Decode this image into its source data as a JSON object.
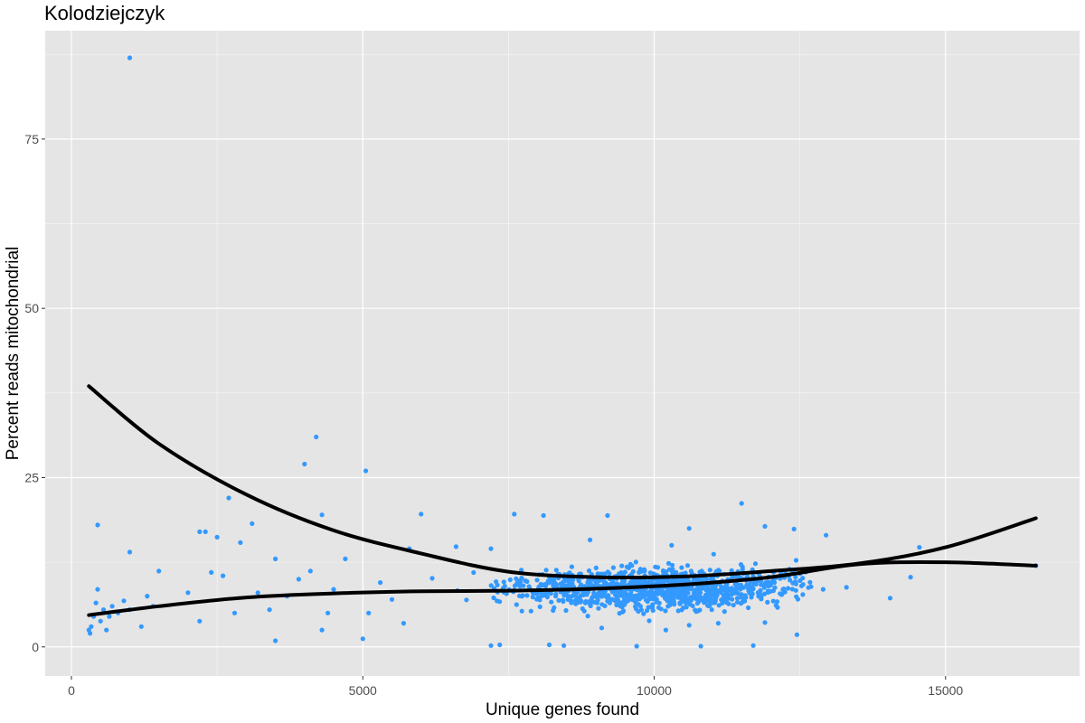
{
  "chart_data": {
    "type": "scatter",
    "title": "Kolodziejczyk",
    "xlabel": "Unique genes found",
    "ylabel": "Percent reads mitochondrial",
    "xlim": [
      -450,
      17300
    ],
    "ylim": [
      -4.3,
      91
    ],
    "xticks": [
      0,
      5000,
      10000,
      15000
    ],
    "xtick_labels": [
      "0",
      "5000",
      "10000",
      "15000"
    ],
    "yticks": [
      0,
      25,
      50,
      75
    ],
    "ytick_labels": [
      "0",
      "25",
      "50",
      "75"
    ],
    "grid": true,
    "legend": "none",
    "colors": {
      "panel": "#e5e5e5",
      "grid": "#ffffff",
      "points": "#3399ff",
      "fit": "#000000",
      "tick_label": "#4d4d4d"
    },
    "points": [
      [
        1000,
        87
      ],
      [
        4200,
        31
      ],
      [
        4000,
        27
      ],
      [
        5050,
        26
      ],
      [
        11500,
        21.2
      ],
      [
        2700,
        22
      ],
      [
        4300,
        19.5
      ],
      [
        6000,
        19.6
      ],
      [
        7600,
        19.6
      ],
      [
        8100,
        19.4
      ],
      [
        9200,
        19.4
      ],
      [
        10600,
        17.5
      ],
      [
        11900,
        17.8
      ],
      [
        12400,
        17.4
      ],
      [
        450,
        18
      ],
      [
        3100,
        18.2
      ],
      [
        2200,
        17
      ],
      [
        2300,
        17
      ],
      [
        2500,
        16.2
      ],
      [
        2900,
        15.4
      ],
      [
        12950,
        16.5
      ],
      [
        14550,
        14.7
      ],
      [
        14400,
        10.3
      ],
      [
        14050,
        7.2
      ],
      [
        16550,
        12
      ],
      [
        1000,
        14
      ],
      [
        1500,
        11.2
      ],
      [
        3500,
        13
      ],
      [
        4100,
        11.2
      ],
      [
        4700,
        13
      ],
      [
        5800,
        14.5
      ],
      [
        6600,
        14.8
      ],
      [
        7200,
        14.5
      ],
      [
        8900,
        15.8
      ],
      [
        10300,
        15
      ],
      [
        300,
        2.5
      ],
      [
        320,
        2
      ],
      [
        340,
        3
      ],
      [
        380,
        4.5
      ],
      [
        420,
        6.5
      ],
      [
        450,
        8.5
      ],
      [
        500,
        3.8
      ],
      [
        550,
        5.5
      ],
      [
        600,
        2.5
      ],
      [
        650,
        4.5
      ],
      [
        700,
        6
      ],
      [
        800,
        5
      ],
      [
        900,
        6.8
      ],
      [
        1000,
        5.5
      ],
      [
        1200,
        3
      ],
      [
        1300,
        7.5
      ],
      [
        1400,
        6
      ],
      [
        2000,
        8
      ],
      [
        2200,
        3.8
      ],
      [
        2400,
        11
      ],
      [
        2600,
        10.5
      ],
      [
        2800,
        5
      ],
      [
        3200,
        8
      ],
      [
        3400,
        5.5
      ],
      [
        3500,
        0.9
      ],
      [
        3700,
        7.5
      ],
      [
        3900,
        10
      ],
      [
        4300,
        2.5
      ],
      [
        4400,
        5
      ],
      [
        4500,
        8.5
      ],
      [
        5000,
        1.2
      ],
      [
        5100,
        5
      ],
      [
        5300,
        9.5
      ],
      [
        5500,
        7
      ],
      [
        5700,
        3.5
      ],
      [
        7200,
        0.2
      ],
      [
        7350,
        0.3
      ],
      [
        8200,
        0.3
      ],
      [
        8450,
        0.2
      ],
      [
        9700,
        0.1
      ],
      [
        10800,
        0.1
      ],
      [
        11700,
        0.2
      ],
      [
        12450,
        1.8
      ],
      [
        9100,
        2.8
      ],
      [
        10200,
        2.5
      ],
      [
        10600,
        3.2
      ],
      [
        11100,
        3.5
      ],
      [
        11900,
        3.6
      ],
      [
        12900,
        8.5
      ],
      [
        13300,
        8.8
      ]
    ],
    "fits": [
      {
        "x": [
          300,
          1500,
          3000,
          4500,
          6000,
          7500,
          9000,
          10500,
          12000,
          13500,
          15000,
          16550
        ],
        "y": [
          38.5,
          30,
          22.5,
          17.2,
          13.8,
          11.1,
          10.3,
          10.4,
          11.2,
          12.3,
          14.7,
          19
        ]
      },
      {
        "x": [
          300,
          1500,
          3000,
          4500,
          6000,
          7500,
          9000,
          10500,
          12000,
          13500,
          15000,
          16550
        ],
        "y": [
          4.7,
          6,
          7.3,
          7.9,
          8.2,
          8.3,
          8.6,
          9.2,
          10.3,
          12.2,
          12.5,
          12
        ]
      }
    ]
  }
}
